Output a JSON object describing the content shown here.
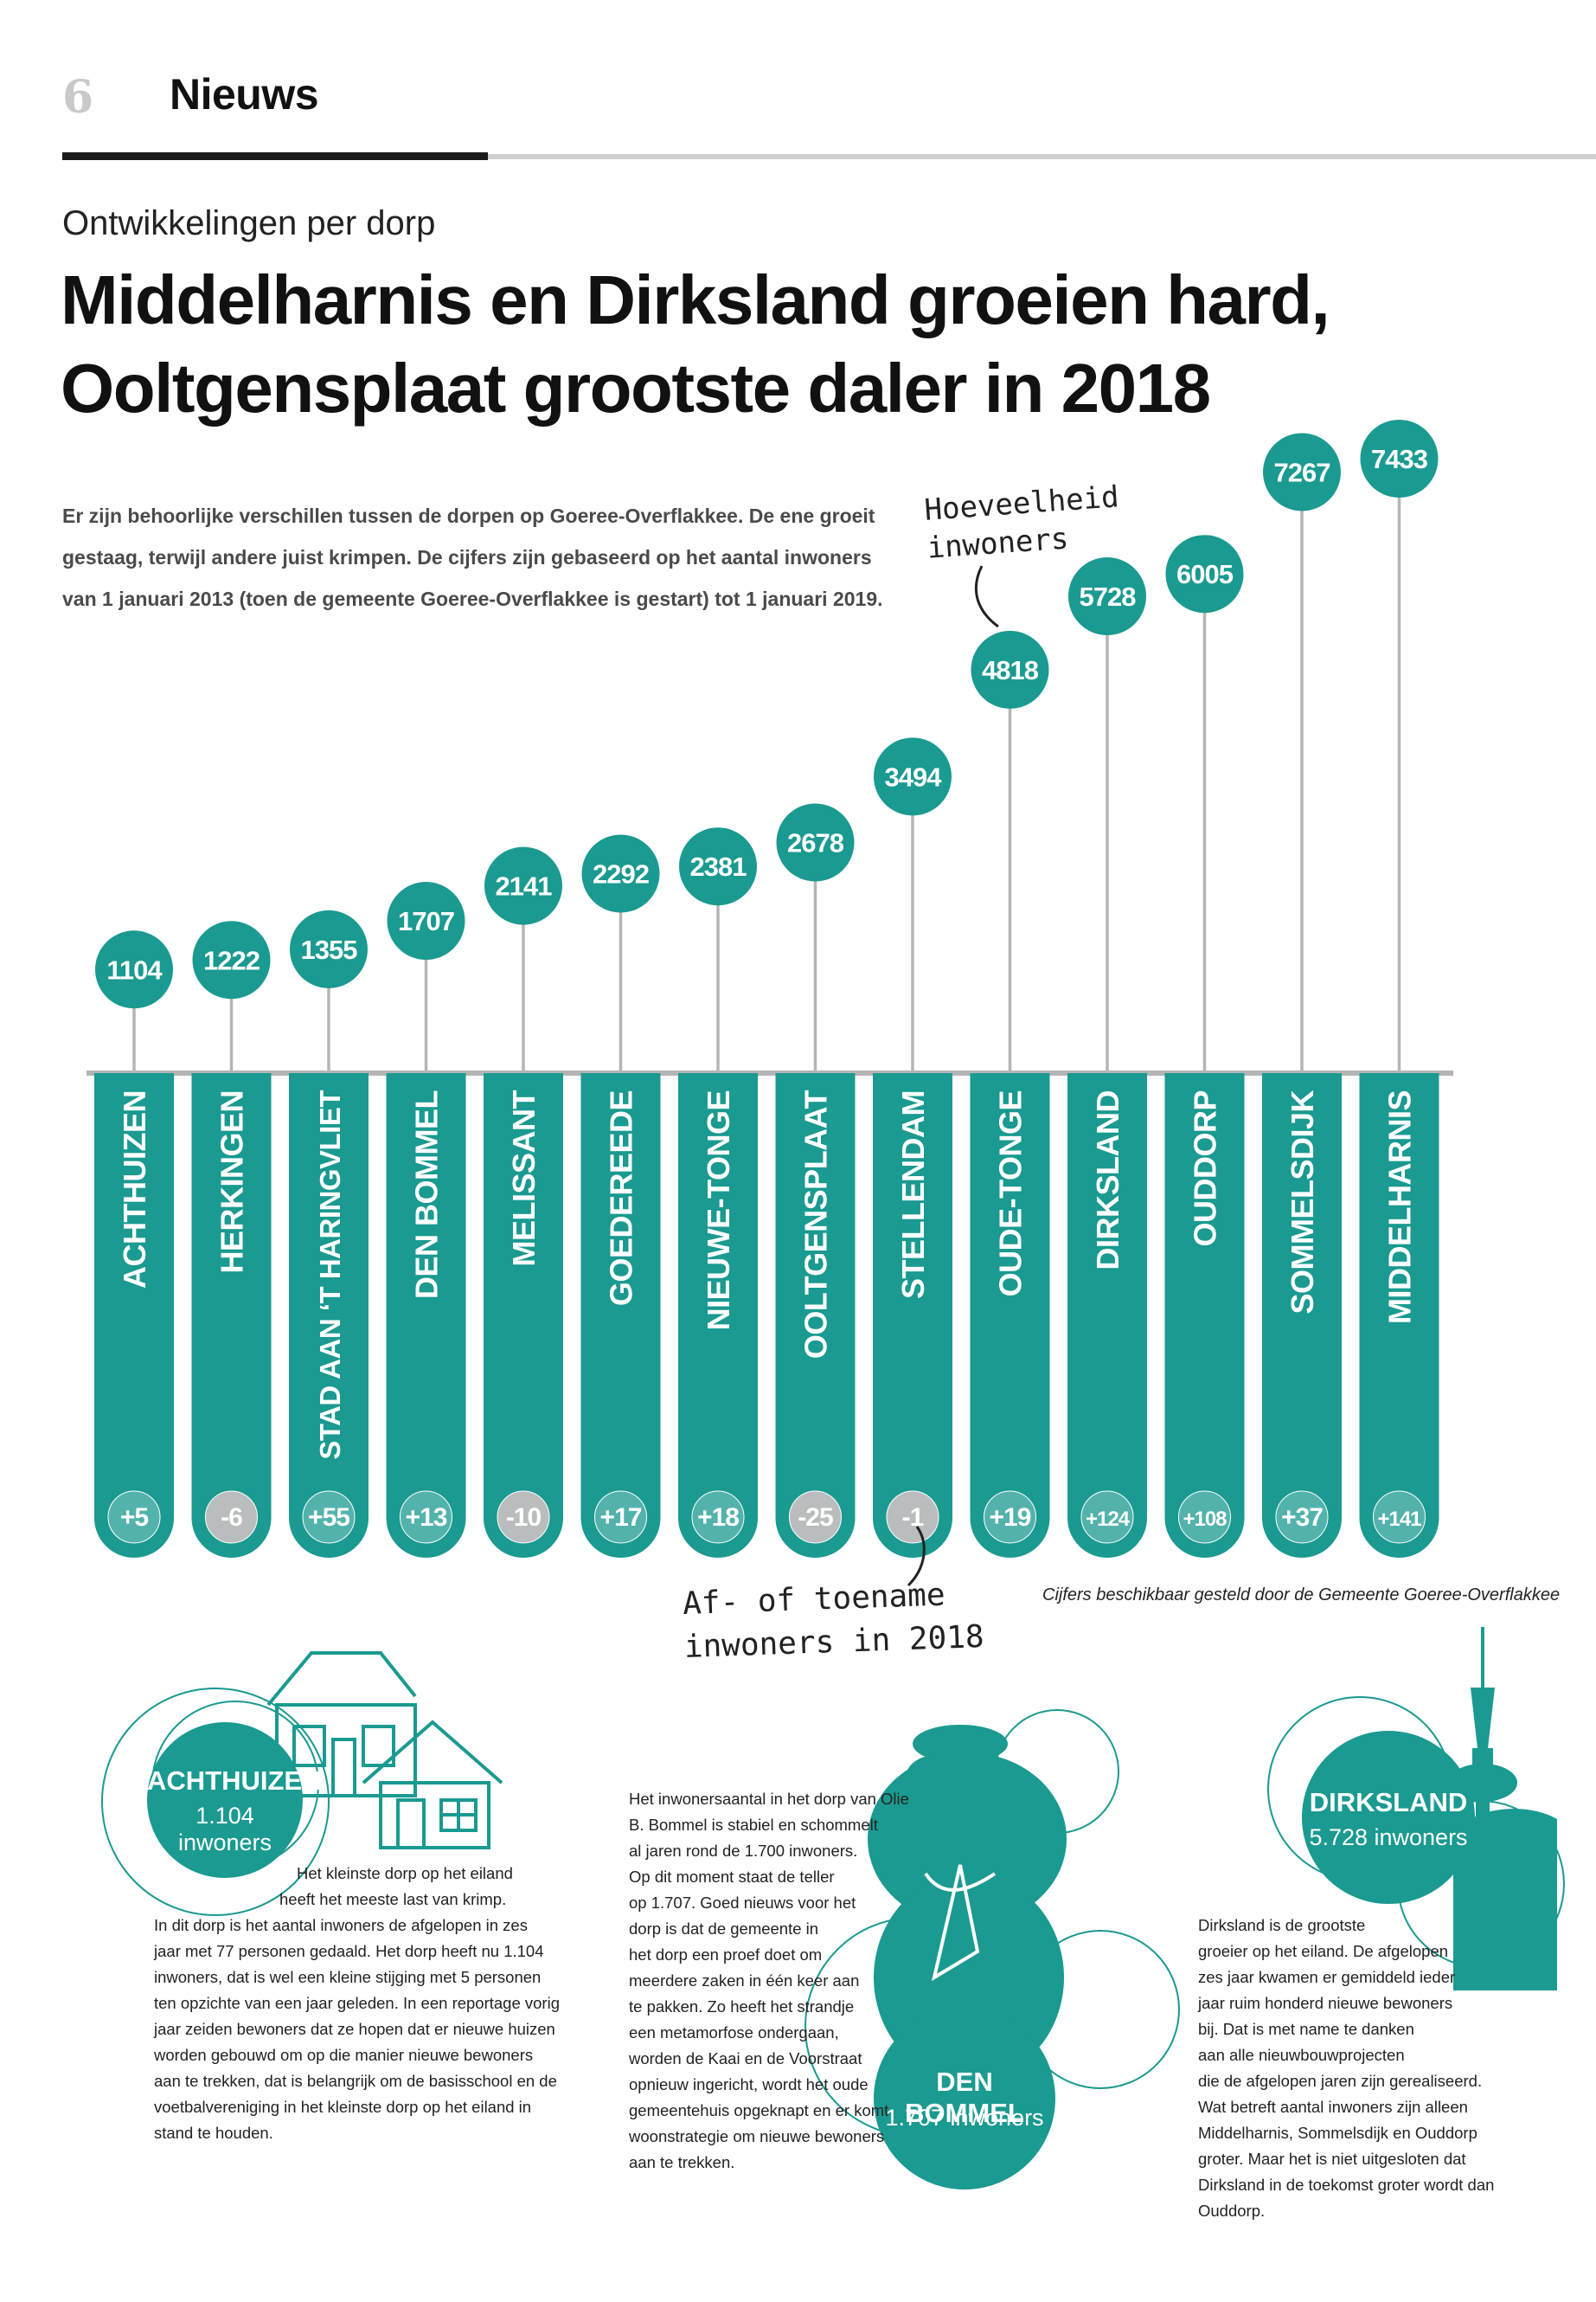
{
  "page": {
    "number": "6",
    "section": "Nieuws",
    "kicker": "Ontwikkelingen per dorp",
    "headline_line1": "Middelharnis en Dirksland groeien hard,",
    "headline_line2": "Ooltgensplaat grootste daler in 2018",
    "intro_line1": "Er zijn behoorlijke verschillen tussen de dorpen op Goeree-Overflakkee. De ene groeit",
    "intro_line2": "gestaag, terwijl andere juist krimpen. De cijfers zijn gebaseerd op het aantal inwoners",
    "intro_line3": "van 1 januari 2013 (toen de gemeente Goeree-Overflakkee is gestart) tot 1 januari 2019.",
    "note_inwoners_1": "Hoeveelheid",
    "note_inwoners_2": "inwoners",
    "note_change_1": "Af- of toename",
    "note_change_2": "inwoners in 2018",
    "source": "Cijfers beschikbaar gesteld door de Gemeente Goeree-Overflakkee"
  },
  "colors": {
    "teal": "#1a9a90",
    "grey_badge": "#b9bdbd",
    "stem": "#b5b5b5"
  },
  "chart_data": {
    "type": "bar",
    "title": "Middelharnis en Dirksland groeien hard, Ooltgensplaat grootste daler in 2018",
    "categories": [
      "ACHTHUIZEN",
      "HERKINGEN",
      "STAD AAN ‘T HARINGVLIET",
      "DEN BOMMEL",
      "MELISSANT",
      "GOEDEREEDE",
      "NIEUWE-TONGE",
      "OOLTGENSPLAAT",
      "STELLENDAM",
      "OUDE-TONGE",
      "DIRKSLAND",
      "OUDDORP",
      "SOMMELSDIJK",
      "MIDDELHARNIS"
    ],
    "series": [
      {
        "name": "Hoeveelheid inwoners",
        "values": [
          1104,
          1222,
          1355,
          1707,
          2141,
          2292,
          2381,
          2678,
          3494,
          4818,
          5728,
          6005,
          7267,
          7433
        ]
      },
      {
        "name": "Af- of toename inwoners in 2018",
        "values": [
          5,
          -6,
          55,
          13,
          -10,
          17,
          18,
          -25,
          -1,
          19,
          124,
          108,
          37,
          141
        ]
      }
    ],
    "value_labels": [
      "1104",
      "1222",
      "1355",
      "1707",
      "2141",
      "2292",
      "2381",
      "2678",
      "3494",
      "4818",
      "5728",
      "6005",
      "7267",
      "7433"
    ],
    "change_labels": [
      "+5",
      "-6",
      "+55",
      "+13",
      "-10",
      "+17",
      "+18",
      "-25",
      "-1",
      "+19",
      "+124",
      "+108",
      "+37",
      "+141"
    ],
    "xlabel": "",
    "ylabel": "Hoeveelheid inwoners",
    "ylim": [
      0,
      7433
    ]
  },
  "features": {
    "achthuizen": {
      "title": "ACHTHUIZEN",
      "sub": "1.104 inwoners",
      "lines": [
        "Het kleinste dorp op het eiland",
        "heeft het meeste last van krimp.",
        "In dit dorp is het aantal inwoners de afgelopen in zes",
        "jaar met 77 personen gedaald. Het dorp heeft nu 1.104",
        "inwoners, dat is wel een kleine stijging met 5 personen",
        "ten opzichte van een jaar geleden. In een reportage vorig",
        "jaar zeiden bewoners dat ze hopen dat er nieuwe huizen",
        "worden gebouwd om op die manier nieuwe bewoners",
        "aan te trekken, dat is belangrijk om de basisschool en de",
        "voetbalvereniging in het kleinste dorp op het eiland in",
        "stand te houden."
      ]
    },
    "denbommel": {
      "title": "DEN BOMMEL",
      "sub": "1.707 inwoners",
      "lines": [
        "Het inwonersaantal in het dorp van Olie",
        "B. Bommel is stabiel en schommelt",
        "al jaren rond de 1.700 inwoners.",
        "Op dit moment staat de teller",
        "op 1.707. Goed nieuws voor het",
        "dorp is dat de gemeente in",
        "het dorp een proef doet om",
        "meerdere zaken in één keer aan",
        "te pakken. Zo heeft het strandje",
        "een metamorfose ondergaan,",
        "worden de Kaai en de Voorstraat",
        "opnieuw ingericht, wordt het oude",
        "gemeentehuis opgeknapt en er komt",
        "woonstrategie om nieuwe bewoners",
        "aan te trekken."
      ]
    },
    "dirksland": {
      "title": "DIRKSLAND",
      "sub": "5.728 inwoners",
      "lines": [
        "Dirksland is de grootste",
        "groeier op het eiland. De afgelopen",
        "zes jaar kwamen er gemiddeld ieder",
        "jaar ruim honderd nieuwe bewoners",
        "bij. Dat is met name te danken",
        "aan alle nieuwbouwprojecten",
        "die de afgelopen jaren zijn gerealiseerd.",
        "Wat betreft aantal inwoners zijn alleen",
        "Middelharnis, Sommelsdijk en Ouddorp",
        "groter. Maar het is niet uitgesloten dat",
        "Dirksland in de toekomst groter wordt dan",
        "Ouddorp."
      ]
    }
  }
}
